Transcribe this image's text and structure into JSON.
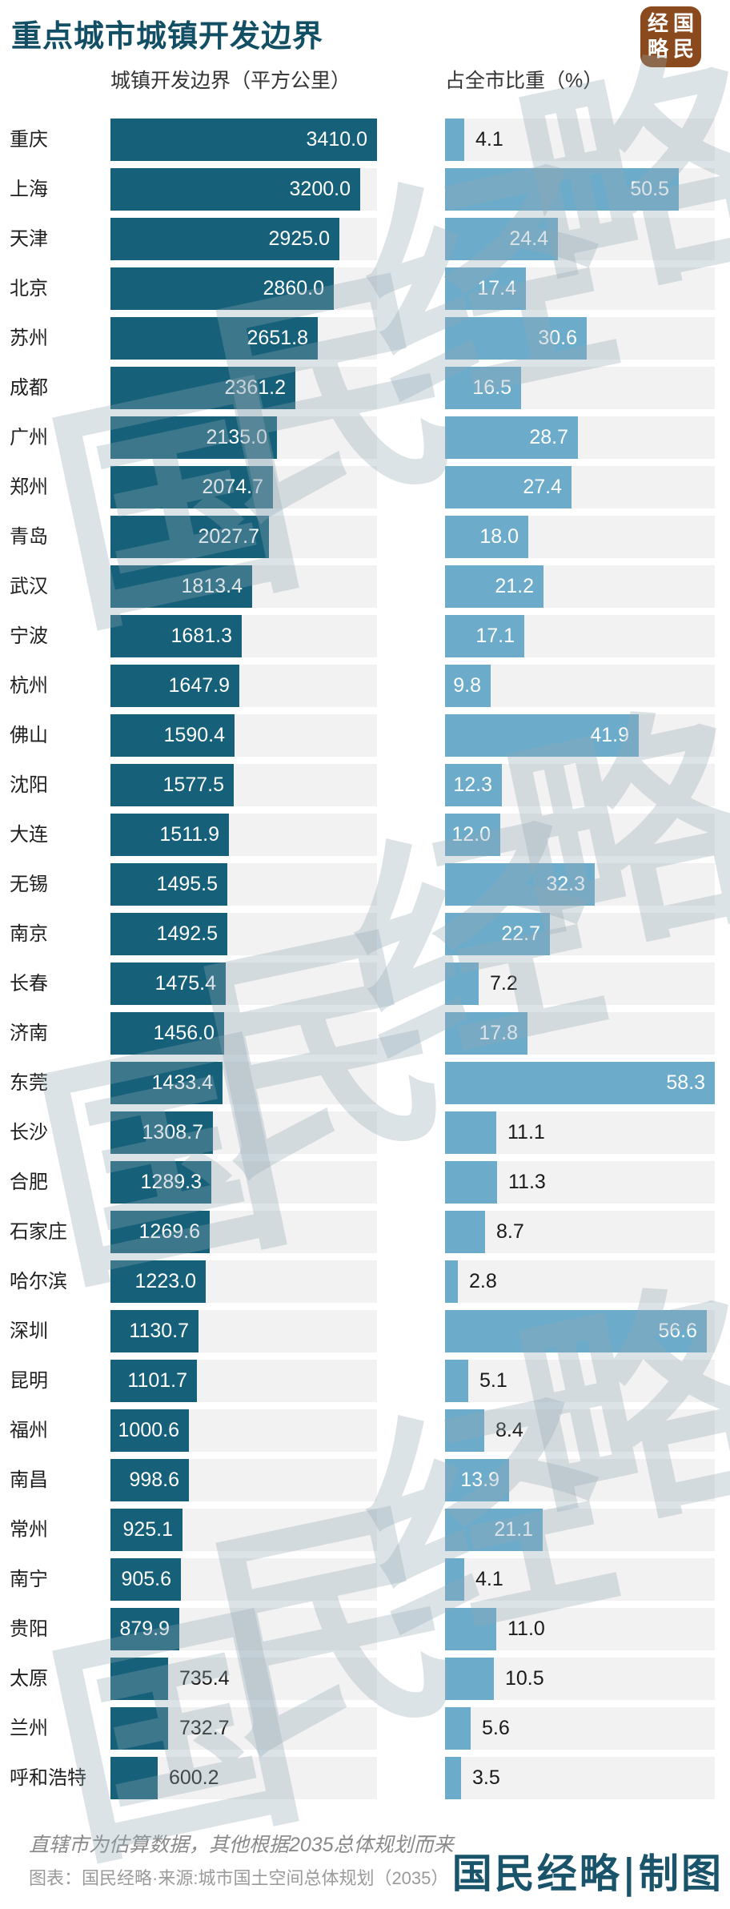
{
  "header": {
    "title": "重点城市城镇开发边界",
    "logo_chars": [
      "经",
      "国",
      "略",
      "民"
    ]
  },
  "columns": {
    "left": "城镇开发边界（平方公里）",
    "right": "占全市比重（%）"
  },
  "chart_data": {
    "type": "bar",
    "orientation": "horizontal",
    "title": "重点城市城镇开发边界",
    "categories": [
      "重庆",
      "上海",
      "天津",
      "北京",
      "苏州",
      "成都",
      "广州",
      "郑州",
      "青岛",
      "武汉",
      "宁波",
      "杭州",
      "佛山",
      "沈阳",
      "大连",
      "无锡",
      "南京",
      "长春",
      "济南",
      "东莞",
      "长沙",
      "合肥",
      "石家庄",
      "哈尔滨",
      "深圳",
      "昆明",
      "福州",
      "南昌",
      "常州",
      "南宁",
      "贵阳",
      "太原",
      "兰州",
      "呼和浩特"
    ],
    "series": [
      {
        "name": "城镇开发边界（平方公里）",
        "values": [
          3410.0,
          3200.0,
          2925.0,
          2860.0,
          2651.8,
          2361.2,
          2135.0,
          2074.7,
          2027.7,
          1813.4,
          1681.3,
          1647.9,
          1590.4,
          1577.5,
          1511.9,
          1495.5,
          1492.5,
          1475.4,
          1456.0,
          1433.4,
          1308.7,
          1289.3,
          1269.6,
          1223.0,
          1130.7,
          1101.7,
          1000.6,
          998.6,
          925.1,
          905.6,
          879.9,
          735.4,
          732.7,
          600.2
        ],
        "axis_max": 3410.0
      },
      {
        "name": "占全市比重（%）",
        "values": [
          4.1,
          50.5,
          24.4,
          17.4,
          30.6,
          16.5,
          28.7,
          27.4,
          18.0,
          21.2,
          17.1,
          9.8,
          41.9,
          12.3,
          12.0,
          32.3,
          22.7,
          7.2,
          17.8,
          58.3,
          11.1,
          11.3,
          8.7,
          2.8,
          56.6,
          5.1,
          8.4,
          13.9,
          21.1,
          4.1,
          11.0,
          10.5,
          5.6,
          3.5
        ],
        "axis_max": 58.3
      }
    ],
    "grid": false,
    "legend_position": "none",
    "value_labels": "one-decimal, inside bar when it fits, otherwise outside"
  },
  "footer": {
    "note": "直辖市为估算数据，其他根据2035总体规划而来",
    "source": "图表：国民经略·来源:城市国土空间总体规划（2035）",
    "credit": "国民经略|制图"
  },
  "watermark_text": "国民经略",
  "colors": {
    "left_bar": "#16607A",
    "right_bar": "#6CACCA",
    "track": "#F2F2F2",
    "title": "#134F64",
    "logo_bg": "#8A4A1D",
    "credit": "#19546B",
    "note": "#8A8A8A"
  }
}
